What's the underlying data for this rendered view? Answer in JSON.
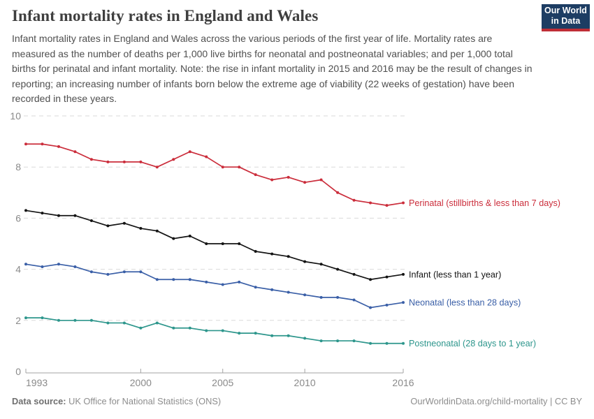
{
  "header": {
    "title": "Infant mortality rates in England and Wales",
    "subtitle": "Infant mortality rates in England and Wales across the various periods of the first year of life. Mortality rates are measured as the number of deaths per 1,000 live births for neonatal and postneonatal variables; and per 1,000 total births for perinatal and infant mortality. Note: the rise in infant mortality in 2015 and 2016 may be the result of changes in reporting; an increasing number of infants born below the extreme age of viability (22 weeks of gestation) have been recorded in these years.",
    "logo": {
      "line1": "Our World",
      "line2": "in Data",
      "bg_color": "#1d3d63",
      "bar_color": "#bf2e36"
    }
  },
  "chart_data": {
    "type": "line",
    "title": "Infant mortality rates in England and Wales",
    "xlabel": "",
    "ylabel": "",
    "x": [
      1993,
      1994,
      1995,
      1996,
      1997,
      1998,
      1999,
      2000,
      2001,
      2002,
      2003,
      2004,
      2005,
      2006,
      2007,
      2008,
      2009,
      2010,
      2011,
      2012,
      2013,
      2014,
      2015,
      2016
    ],
    "xlim": [
      1993,
      2016
    ],
    "ylim": [
      0,
      10
    ],
    "yticks": [
      0,
      2,
      4,
      6,
      8,
      10
    ],
    "xticks": [
      1993,
      2000,
      2005,
      2010,
      2016
    ],
    "grid": "horizontal-dashed",
    "legend_position": "line-end-labels",
    "series": [
      {
        "name": "Perinatal (stillbirths & less than 7 days)",
        "color": "#cb2d3b",
        "values": [
          8.9,
          8.9,
          8.8,
          8.6,
          8.3,
          8.2,
          8.2,
          8.2,
          8.0,
          8.3,
          8.6,
          8.4,
          8.0,
          8.0,
          7.7,
          7.5,
          7.6,
          7.4,
          7.5,
          7.0,
          6.7,
          6.6,
          6.5,
          6.6
        ]
      },
      {
        "name": "Infant (less than 1 year)",
        "color": "#141414",
        "values": [
          6.3,
          6.2,
          6.1,
          6.1,
          5.9,
          5.7,
          5.8,
          5.6,
          5.5,
          5.2,
          5.3,
          5.0,
          5.0,
          5.0,
          4.7,
          4.6,
          4.5,
          4.3,
          4.2,
          4.0,
          3.8,
          3.6,
          3.7,
          3.8
        ]
      },
      {
        "name": "Neonatal (less than 28 days)",
        "color": "#3a5fa7",
        "values": [
          4.2,
          4.1,
          4.2,
          4.1,
          3.9,
          3.8,
          3.9,
          3.9,
          3.6,
          3.6,
          3.6,
          3.5,
          3.4,
          3.5,
          3.3,
          3.2,
          3.1,
          3.0,
          2.9,
          2.9,
          2.8,
          2.5,
          2.6,
          2.7
        ]
      },
      {
        "name": "Postneonatal (28 days to 1 year)",
        "color": "#2d968c",
        "values": [
          2.1,
          2.1,
          2.0,
          2.0,
          2.0,
          1.9,
          1.9,
          1.7,
          1.9,
          1.7,
          1.7,
          1.6,
          1.6,
          1.5,
          1.5,
          1.4,
          1.4,
          1.3,
          1.2,
          1.2,
          1.2,
          1.1,
          1.1,
          1.1
        ]
      }
    ]
  },
  "footer": {
    "source_label": "Data source:",
    "source_value": " UK Office for National Statistics (ONS)",
    "attribution": "OurWorldinData.org/child-mortality | CC BY"
  }
}
